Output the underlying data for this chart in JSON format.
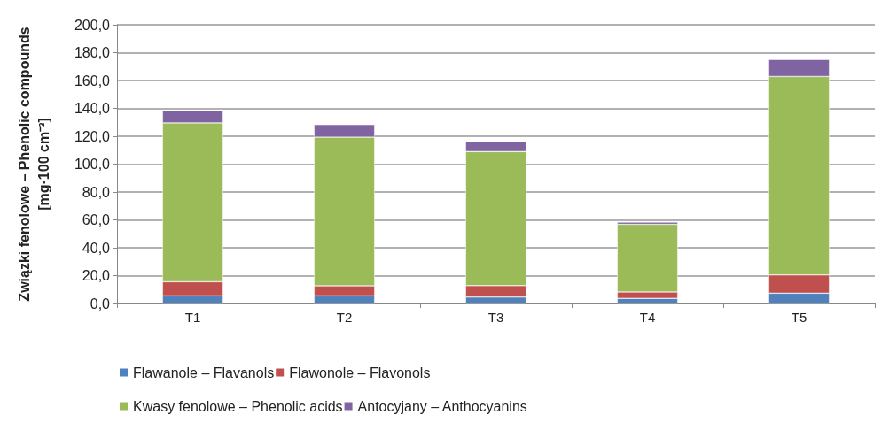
{
  "chart_data": {
    "type": "bar",
    "stacked": true,
    "ylabel": "Związki fenolowe – Phenolic compounds\n[mg·100 cm⁻³]",
    "categories": [
      "T1",
      "T2",
      "T3",
      "T4",
      "T5"
    ],
    "series": [
      {
        "name": "Flawanole – Flavanols",
        "color": "#4f81bd",
        "values": [
          5.5,
          5.5,
          4.6,
          3.7,
          7.4
        ]
      },
      {
        "name": "Flawonole – Flavonols",
        "color": "#c0504d",
        "values": [
          10.1,
          7.2,
          8.2,
          4.6,
          13.1
        ]
      },
      {
        "name": "Kwasy fenolowe – Phenolic acids",
        "color": "#9bbb59",
        "values": [
          114.0,
          106.6,
          96.2,
          48.5,
          142.4
        ]
      },
      {
        "name": "Antocyjany – Anthocyanins",
        "color": "#8064a2",
        "values": [
          8.7,
          9.1,
          7.1,
          1.6,
          12.2
        ]
      }
    ],
    "ylim": [
      0,
      200
    ],
    "yticks": [
      {
        "value": 0,
        "label": "0,0"
      },
      {
        "value": 20,
        "label": "20,0"
      },
      {
        "value": 40,
        "label": "40,0"
      },
      {
        "value": 60,
        "label": "60,0"
      },
      {
        "value": 80,
        "label": "80,0"
      },
      {
        "value": 100,
        "label": "100,0"
      },
      {
        "value": 120,
        "label": "120,0"
      },
      {
        "value": 140,
        "label": "140,0"
      },
      {
        "value": 160,
        "label": "160,0"
      },
      {
        "value": 180,
        "label": "180,0"
      },
      {
        "value": 200,
        "label": "200,0"
      }
    ],
    "grid": "y",
    "legend": "bottom"
  }
}
